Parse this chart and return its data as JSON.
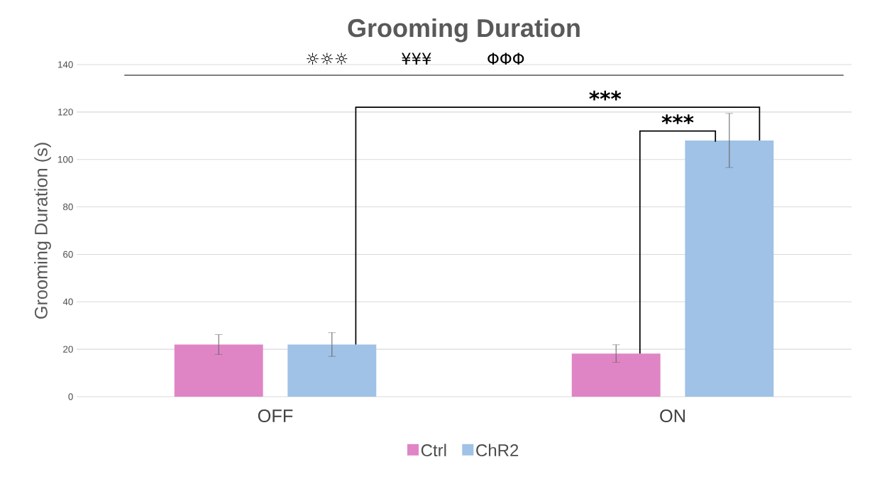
{
  "chart_data": {
    "type": "bar",
    "title": "Grooming Duration",
    "ylabel": "Grooming Duration (s)",
    "categories": [
      "OFF",
      "ON"
    ],
    "series": [
      {
        "name": "Ctrl",
        "color": "#df85c5",
        "values": [
          22,
          18.2
        ],
        "errors": [
          4.2,
          3.7
        ]
      },
      {
        "name": "ChR2",
        "color": "#9fc2e6",
        "values": [
          22,
          108
        ],
        "errors": [
          5,
          11.4
        ]
      }
    ],
    "ylim": [
      0,
      140
    ],
    "yticks": [
      0,
      20,
      40,
      60,
      80,
      100,
      120,
      140
    ],
    "grid": "y",
    "legend": "bottom",
    "ref_lines": [
      {
        "axis": "y",
        "value": 135.5,
        "color": "#7f7f7f"
      }
    ],
    "annotations": [
      "☼☼☼",
      "¥¥¥",
      "ΦΦΦ",
      "***",
      "***"
    ]
  }
}
